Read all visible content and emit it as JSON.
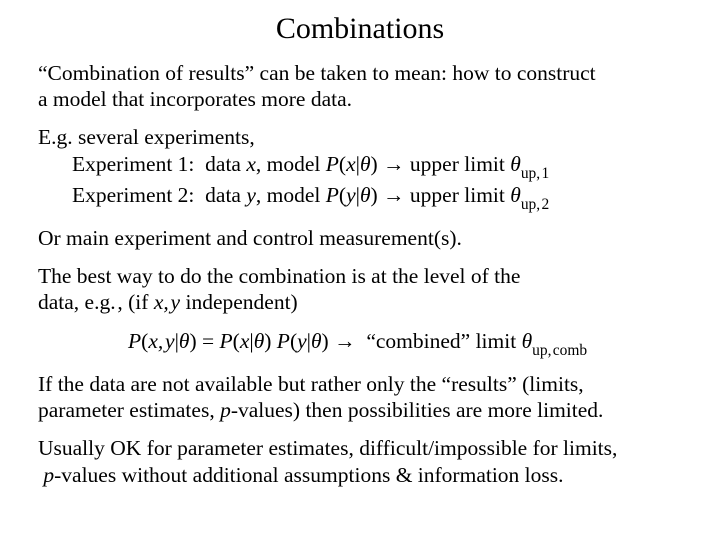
{
  "title": "Combinations",
  "p1a": "“Combination of results” can be taken to mean: how to construct",
  "p1b": "a model that incorporates more data.",
  "eg_line": "E.g. several experiments,",
  "exp1_pre": "Experiment 1:  data ",
  "x": "x",
  "exp_model": ", model ",
  "P": "P",
  "lpar": "(",
  "bar": "|",
  "theta": "θ",
  "rpar": ")",
  "arrow": " → upper limit ",
  "sub_up1": "up, 1",
  "exp2_pre": "Experiment 2:  data ",
  "y": "y",
  "sub_up2": "up, 2",
  "p3": "Or main experiment and control measurement(s).",
  "p4a": "The best way to do the combination is at the level of the",
  "p4b_pre": "data, e.g. , (if ",
  "xy": "x, y",
  "p4b_post": " independent)",
  "eq_eq": " = ",
  "eq_sp": " ",
  "eq_arrow": " →  “combined” limit ",
  "sub_comb": "up, comb",
  "p6a": "If the data are not available but rather only the “results” (limits,",
  "p6b_pre": "parameter estimates, ",
  "pval": "p",
  "p6b_post": "-values) then possibilities are more limited.",
  "p7a": "Usually OK for parameter estimates, difficult/impossible for limits,",
  "p7b_pre": " ",
  "p7b_post": "-values without additional assumptions & information loss."
}
